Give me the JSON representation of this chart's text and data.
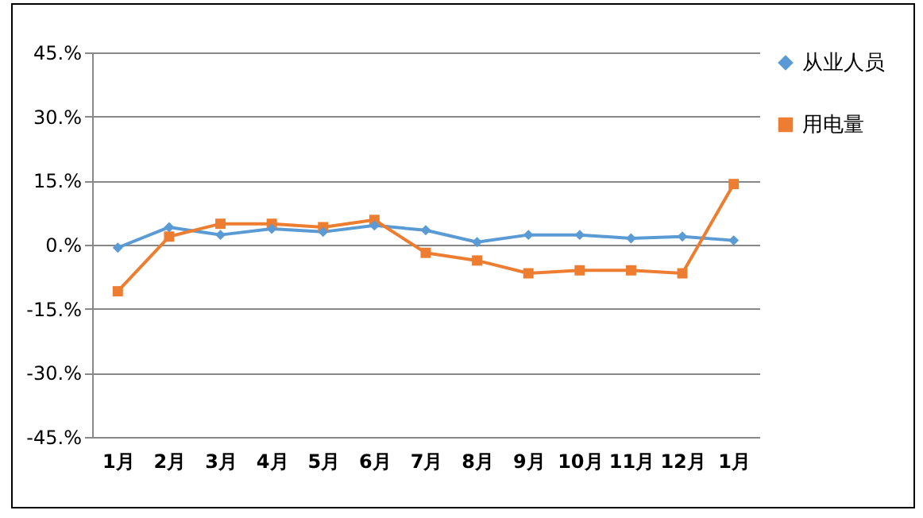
{
  "chart_data": {
    "type": "line",
    "categories": [
      "1月",
      "2月",
      "3月",
      "4月",
      "5月",
      "6月",
      "7月",
      "8月",
      "9月",
      "10月",
      "11月",
      "12月",
      "1月"
    ],
    "series": [
      {
        "name": "从业人员",
        "color": "#5b9bd5",
        "marker": "diamond",
        "values": [
          -0.7,
          4.1,
          2.3,
          3.7,
          3.0,
          4.5,
          3.4,
          0.6,
          2.3,
          2.3,
          1.5,
          1.9,
          1.0
        ]
      },
      {
        "name": "用电量",
        "color": "#ed7d31",
        "marker": "square",
        "values": [
          -10.9,
          1.9,
          4.9,
          4.9,
          4.1,
          5.8,
          -1.9,
          -3.7,
          -6.7,
          -6.0,
          -6.0,
          -6.7,
          14.2
        ]
      }
    ],
    "ylim": [
      -45,
      45
    ],
    "yticks": [
      {
        "value": -45,
        "label": "-45.%"
      },
      {
        "value": -30,
        "label": "-30.%"
      },
      {
        "value": -15,
        "label": "-15.%"
      },
      {
        "value": 0,
        "label": "0.%"
      },
      {
        "value": 15,
        "label": "15.%"
      },
      {
        "value": 30,
        "label": "30.%"
      },
      {
        "value": 45,
        "label": "45.%"
      }
    ],
    "grid": "y",
    "legend": "right",
    "line_style": "solid"
  }
}
